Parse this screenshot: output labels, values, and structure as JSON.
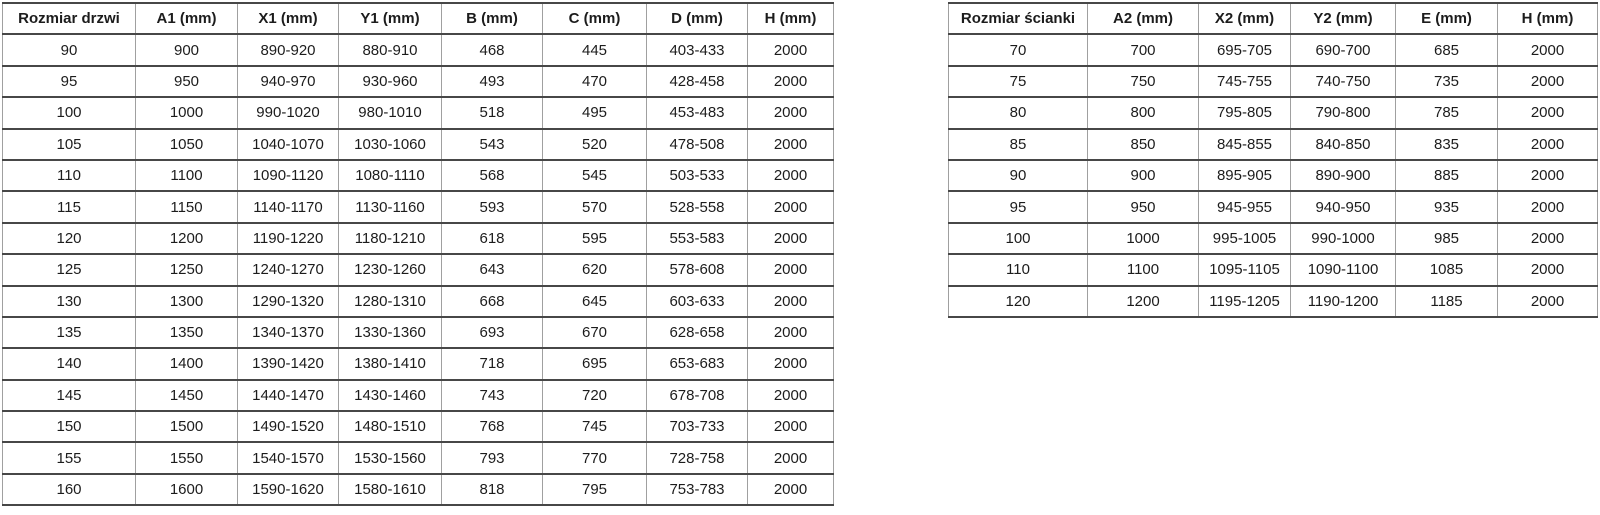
{
  "colors": {
    "background": "#ffffff",
    "text": "#1c1c1c",
    "border_horizontal": "#474747",
    "border_vertical": "#a0a0a0"
  },
  "tables": [
    {
      "name": "door-size-table",
      "headers": [
        "Rozmiar drzwi",
        "A1 (mm)",
        "X1 (mm)",
        "Y1 (mm)",
        "B (mm)",
        "C (mm)",
        "D (mm)",
        "H (mm)"
      ],
      "rows": [
        [
          "90",
          "900",
          "890-920",
          "880-910",
          "468",
          "445",
          "403-433",
          "2000"
        ],
        [
          "95",
          "950",
          "940-970",
          "930-960",
          "493",
          "470",
          "428-458",
          "2000"
        ],
        [
          "100",
          "1000",
          "990-1020",
          "980-1010",
          "518",
          "495",
          "453-483",
          "2000"
        ],
        [
          "105",
          "1050",
          "1040-1070",
          "1030-1060",
          "543",
          "520",
          "478-508",
          "2000"
        ],
        [
          "110",
          "1100",
          "1090-1120",
          "1080-1110",
          "568",
          "545",
          "503-533",
          "2000"
        ],
        [
          "115",
          "1150",
          "1140-1170",
          "1130-1160",
          "593",
          "570",
          "528-558",
          "2000"
        ],
        [
          "120",
          "1200",
          "1190-1220",
          "1180-1210",
          "618",
          "595",
          "553-583",
          "2000"
        ],
        [
          "125",
          "1250",
          "1240-1270",
          "1230-1260",
          "643",
          "620",
          "578-608",
          "2000"
        ],
        [
          "130",
          "1300",
          "1290-1320",
          "1280-1310",
          "668",
          "645",
          "603-633",
          "2000"
        ],
        [
          "135",
          "1350",
          "1340-1370",
          "1330-1360",
          "693",
          "670",
          "628-658",
          "2000"
        ],
        [
          "140",
          "1400",
          "1390-1420",
          "1380-1410",
          "718",
          "695",
          "653-683",
          "2000"
        ],
        [
          "145",
          "1450",
          "1440-1470",
          "1430-1460",
          "743",
          "720",
          "678-708",
          "2000"
        ],
        [
          "150",
          "1500",
          "1490-1520",
          "1480-1510",
          "768",
          "745",
          "703-733",
          "2000"
        ],
        [
          "155",
          "1550",
          "1540-1570",
          "1530-1560",
          "793",
          "770",
          "728-758",
          "2000"
        ],
        [
          "160",
          "1600",
          "1590-1620",
          "1580-1610",
          "818",
          "795",
          "753-783",
          "2000"
        ]
      ]
    },
    {
      "name": "wall-size-table",
      "headers": [
        "Rozmiar ścianki",
        "A2 (mm)",
        "X2 (mm)",
        "Y2 (mm)",
        "E (mm)",
        "H (mm)"
      ],
      "rows": [
        [
          "70",
          "700",
          "695-705",
          "690-700",
          "685",
          "2000"
        ],
        [
          "75",
          "750",
          "745-755",
          "740-750",
          "735",
          "2000"
        ],
        [
          "80",
          "800",
          "795-805",
          "790-800",
          "785",
          "2000"
        ],
        [
          "85",
          "850",
          "845-855",
          "840-850",
          "835",
          "2000"
        ],
        [
          "90",
          "900",
          "895-905",
          "890-900",
          "885",
          "2000"
        ],
        [
          "95",
          "950",
          "945-955",
          "940-950",
          "935",
          "2000"
        ],
        [
          "100",
          "1000",
          "995-1005",
          "990-1000",
          "985",
          "2000"
        ],
        [
          "110",
          "1100",
          "1095-1105",
          "1090-1100",
          "1085",
          "2000"
        ],
        [
          "120",
          "1200",
          "1195-1205",
          "1190-1200",
          "1185",
          "2000"
        ]
      ]
    }
  ]
}
